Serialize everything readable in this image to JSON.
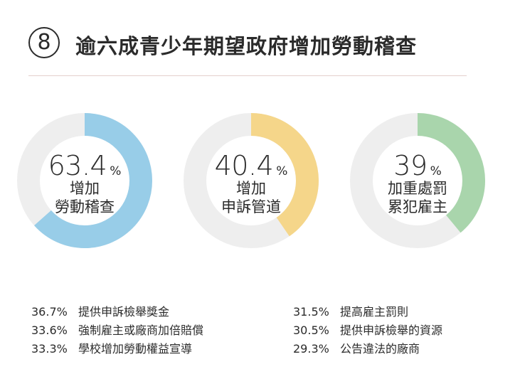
{
  "header": {
    "number": "8",
    "title": "逾六成青少年期望政府增加勞動稽查"
  },
  "chart_data": {
    "type": "pie",
    "variant": "donut",
    "items": [
      {
        "value_text": "63.4",
        "unit": "%",
        "value": 63.4,
        "label_line1": "增加",
        "label_line2": "勞動稽查",
        "color": "#98cde8"
      },
      {
        "value_text": "40.4",
        "unit": "%",
        "value": 40.4,
        "label_line1": "增加",
        "label_line2": "申訴管道",
        "color": "#f5d68a"
      },
      {
        "value_text": "39",
        "unit": "%",
        "value": 39,
        "label_line1": "加重處罰",
        "label_line2": "累犯雇主",
        "color": "#a9d5ac"
      }
    ],
    "track_color": "#eeeeee",
    "others_left": [
      {
        "pct": "36.7%",
        "text": "提供申訴檢舉獎金",
        "value": 36.7
      },
      {
        "pct": "33.6%",
        "text": "強制雇主或廠商加倍賠償",
        "value": 33.6
      },
      {
        "pct": "33.3%",
        "text": "學校增加勞動權益宣導",
        "value": 33.3
      }
    ],
    "others_right": [
      {
        "pct": "31.5%",
        "text": "提高雇主罰則",
        "value": 31.5
      },
      {
        "pct": "30.5%",
        "text": "提供申訴檢舉的資源",
        "value": 30.5
      },
      {
        "pct": "29.3%",
        "text": "公告違法的廠商",
        "value": 29.3
      }
    ]
  }
}
